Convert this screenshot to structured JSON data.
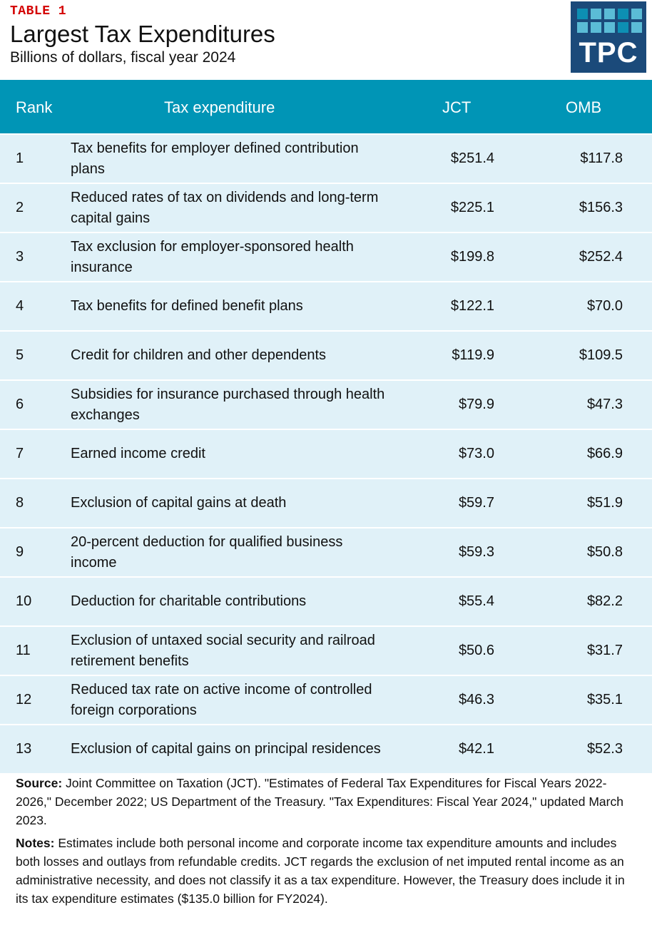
{
  "header": {
    "table_label": "TABLE 1",
    "title": "Largest Tax Expenditures",
    "subtitle": "Billions of dollars, fiscal year 2024"
  },
  "logo": {
    "text": "TPC",
    "background": "#1b4a7a",
    "tile_colors": [
      "#0d8fb3",
      "#5bbcd6",
      "#5bbcd6",
      "#0d8fb3",
      "#5bbcd6",
      "#5bbcd6",
      "#5bbcd6",
      "#5bbcd6",
      "#0d8fb3",
      "#5bbcd6"
    ]
  },
  "colors": {
    "header_band": "#0095b6",
    "row_background": "#e0f1f8",
    "label_red": "#d40000"
  },
  "table": {
    "columns": [
      "Rank",
      "Tax expenditure",
      "JCT",
      "OMB"
    ],
    "rows": [
      {
        "rank": "1",
        "expenditure": "Tax benefits for employer defined contribution plans",
        "jct": "$251.4",
        "omb": "$117.8"
      },
      {
        "rank": "2",
        "expenditure": "Reduced rates of tax on dividends and long-term capital gains",
        "jct": "$225.1",
        "omb": "$156.3"
      },
      {
        "rank": "3",
        "expenditure": "Tax exclusion for employer-sponsored health insurance",
        "jct": "$199.8",
        "omb": "$252.4"
      },
      {
        "rank": "4",
        "expenditure": "Tax benefits for defined benefit plans",
        "jct": "$122.1",
        "omb": "$70.0"
      },
      {
        "rank": "5",
        "expenditure": "Credit for children and other dependents",
        "jct": "$119.9",
        "omb": "$109.5"
      },
      {
        "rank": "6",
        "expenditure": "Subsidies for insurance purchased through health exchanges",
        "jct": "$79.9",
        "omb": "$47.3"
      },
      {
        "rank": "7",
        "expenditure": "Earned income credit",
        "jct": "$73.0",
        "omb": "$66.9"
      },
      {
        "rank": "8",
        "expenditure": "Exclusion of capital gains at death",
        "jct": "$59.7",
        "omb": "$51.9"
      },
      {
        "rank": "9",
        "expenditure": "20-percent deduction for qualified business income",
        "jct": "$59.3",
        "omb": "$50.8"
      },
      {
        "rank": "10",
        "expenditure": "Deduction for charitable contributions",
        "jct": "$55.4",
        "omb": "$82.2"
      },
      {
        "rank": "11",
        "expenditure": "Exclusion of untaxed social security and railroad retirement benefits",
        "jct": "$50.6",
        "omb": "$31.7"
      },
      {
        "rank": "12",
        "expenditure": "Reduced tax rate on active income of controlled foreign corporations",
        "jct": "$46.3",
        "omb": "$35.1"
      },
      {
        "rank": "13",
        "expenditure": "Exclusion of capital gains on principal residences",
        "jct": "$42.1",
        "omb": "$52.3"
      }
    ]
  },
  "footer": {
    "source_label": "Source:",
    "source_text": " Joint Committee on Taxation (JCT). \"Estimates of Federal Tax Expenditures for Fiscal Years 2022-2026,\" December 2022; US Department of the Treasury. \"Tax Expenditures: Fiscal Year 2024,\" updated March 2023.",
    "notes_label": "Notes:",
    "notes_text": " Estimates include both personal income and corporate income tax expenditure amounts and includes both losses and outlays from refundable credits. JCT regards the exclusion of net imputed rental income as an administrative necessity, and does not classify it as a tax expenditure. However, the Treasury does include it in its tax expenditure estimates ($135.0 billion for FY2024)."
  }
}
